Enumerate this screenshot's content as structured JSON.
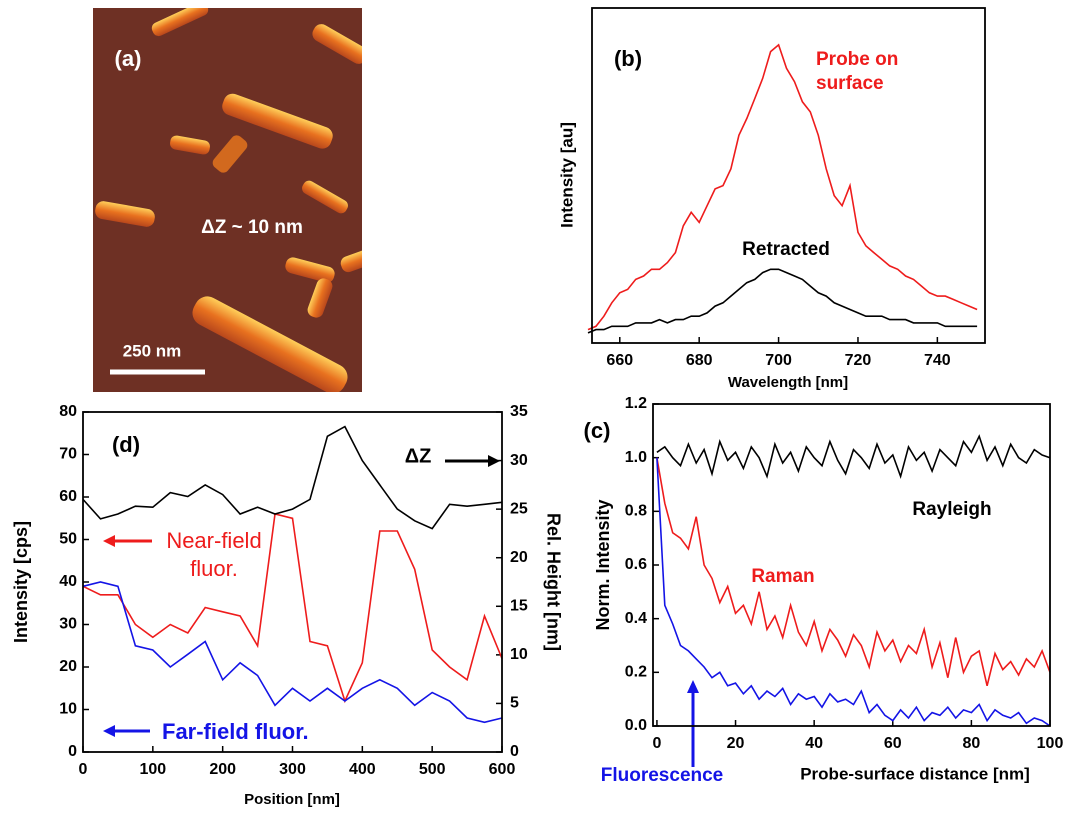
{
  "chart_data": [
    {
      "type": "image",
      "title": "(a)",
      "annotation": "ΔZ ~ 10 nm",
      "scale_bar_label": "250 nm"
    },
    {
      "type": "line",
      "title": "(b)",
      "y_label": "Intensity [au]",
      "x_label": "Wavelength [nm]",
      "x": [
        652,
        654,
        656,
        658,
        660,
        662,
        664,
        666,
        668,
        670,
        672,
        674,
        676,
        678,
        680,
        682,
        684,
        686,
        688,
        690,
        692,
        694,
        696,
        698,
        700,
        702,
        704,
        706,
        708,
        710,
        712,
        714,
        716,
        718,
        720,
        722,
        724,
        726,
        728,
        730,
        732,
        734,
        736,
        738,
        740,
        742,
        744,
        746,
        748,
        750
      ],
      "xlim": [
        653,
        752
      ],
      "xticks": [
        660,
        680,
        700,
        720,
        740
      ],
      "ylim": [
        0,
        100
      ],
      "series": [
        {
          "name": "Probe on surface",
          "color": "#ee1c1c",
          "values": [
            4,
            5,
            8,
            12,
            15,
            16,
            19,
            20,
            22,
            22,
            24,
            27,
            35,
            39,
            36,
            41,
            46,
            47,
            52,
            62,
            67,
            73,
            79,
            87,
            89,
            82,
            78,
            72,
            69,
            62,
            52,
            44,
            41,
            47,
            33,
            29,
            27,
            25,
            23,
            22,
            20,
            19,
            17,
            15,
            14,
            14,
            13,
            12,
            11,
            10
          ]
        },
        {
          "name": "Retracted",
          "color": "#000000",
          "values": [
            3,
            4,
            4,
            5,
            5,
            5,
            6,
            6,
            6,
            7,
            6,
            7,
            7,
            8,
            8,
            9,
            11,
            12,
            14,
            16,
            18,
            19,
            21,
            22,
            22,
            21,
            20,
            19,
            17,
            15,
            14,
            12,
            11,
            10,
            9,
            8,
            8,
            8,
            7,
            7,
            7,
            6,
            6,
            6,
            6,
            5,
            5,
            5,
            5,
            5
          ]
        }
      ]
    },
    {
      "type": "line",
      "title": "(c)",
      "y_label": "Norm. Intensity",
      "x_label": "Probe-surface distance [nm]",
      "x": [
        0,
        2,
        4,
        6,
        8,
        10,
        12,
        14,
        16,
        18,
        20,
        22,
        24,
        26,
        28,
        30,
        32,
        34,
        36,
        38,
        40,
        42,
        44,
        46,
        48,
        50,
        52,
        54,
        56,
        58,
        60,
        62,
        64,
        66,
        68,
        70,
        72,
        74,
        76,
        78,
        80,
        82,
        84,
        86,
        88,
        90,
        92,
        94,
        96,
        98,
        100
      ],
      "xlim": [
        -1,
        100
      ],
      "xticks": [
        0,
        20,
        40,
        60,
        80,
        100
      ],
      "ylim": [
        0,
        1.2
      ],
      "yticks": [
        {
          "value": 0,
          "label": "0.0"
        },
        0.2,
        0.4,
        0.6,
        0.8,
        {
          "value": 1,
          "label": "1.0"
        },
        1.2
      ],
      "series": [
        {
          "name": "Rayleigh",
          "color": "#000000",
          "values": [
            1.02,
            1.04,
            1.0,
            0.97,
            1.05,
            0.98,
            1.03,
            0.94,
            1.06,
            0.99,
            1.02,
            0.96,
            1.04,
            1.0,
            0.93,
            1.05,
            0.98,
            1.02,
            0.95,
            1.04,
            1.0,
            0.97,
            1.06,
            0.99,
            0.94,
            1.03,
            1.0,
            0.96,
            1.05,
            0.98,
            1.01,
            0.93,
            1.04,
            0.99,
            1.02,
            0.95,
            1.03,
            1.0,
            0.97,
            1.06,
            1.02,
            1.08,
            0.99,
            1.04,
            0.97,
            1.05,
            1.0,
            0.98,
            1.03,
            1.01,
            1.0
          ]
        },
        {
          "name": "Raman",
          "color": "#ee1c1c",
          "values": [
            1.0,
            0.83,
            0.72,
            0.7,
            0.66,
            0.78,
            0.6,
            0.55,
            0.46,
            0.52,
            0.42,
            0.45,
            0.38,
            0.5,
            0.36,
            0.41,
            0.33,
            0.45,
            0.35,
            0.3,
            0.39,
            0.28,
            0.36,
            0.32,
            0.26,
            0.34,
            0.3,
            0.22,
            0.35,
            0.28,
            0.32,
            0.24,
            0.3,
            0.27,
            0.36,
            0.22,
            0.31,
            0.18,
            0.33,
            0.2,
            0.26,
            0.28,
            0.15,
            0.27,
            0.21,
            0.24,
            0.19,
            0.25,
            0.22,
            0.28,
            0.2
          ]
        },
        {
          "name": "Fluorescence",
          "color": "#1414e6",
          "values": [
            1.0,
            0.45,
            0.38,
            0.3,
            0.28,
            0.25,
            0.22,
            0.18,
            0.2,
            0.15,
            0.16,
            0.12,
            0.15,
            0.1,
            0.13,
            0.11,
            0.14,
            0.08,
            0.12,
            0.1,
            0.11,
            0.07,
            0.12,
            0.09,
            0.1,
            0.08,
            0.13,
            0.05,
            0.08,
            0.04,
            0.02,
            0.06,
            0.03,
            0.07,
            0.02,
            0.05,
            0.04,
            0.07,
            0.03,
            0.06,
            0.05,
            0.08,
            0.02,
            0.06,
            0.04,
            0.03,
            0.05,
            0.01,
            0.03,
            0.02,
            0.0
          ]
        }
      ]
    },
    {
      "type": "line",
      "title": "(d)",
      "y_label": "Intensity [cps]",
      "y2_label": "Rel. Height [nm]",
      "x_label": "Position [nm]",
      "x": [
        0,
        25,
        50,
        75,
        100,
        125,
        150,
        175,
        200,
        225,
        250,
        275,
        300,
        325,
        350,
        375,
        400,
        425,
        450,
        475,
        500,
        525,
        550,
        575,
        600
      ],
      "xlim": [
        0,
        600
      ],
      "xticks": [
        0,
        100,
        200,
        300,
        400,
        500,
        600
      ],
      "ylim": [
        0,
        80
      ],
      "yticks": [
        0,
        10,
        20,
        30,
        40,
        50,
        60,
        70,
        80
      ],
      "y2lim": [
        0,
        35
      ],
      "y2ticks": [
        0,
        5,
        10,
        15,
        20,
        25,
        30,
        35
      ],
      "series": [
        {
          "name": "Near-field fluor.",
          "color": "#ee1c1c",
          "values": [
            39,
            37,
            37,
            30,
            27,
            30,
            28,
            34,
            33,
            32,
            25,
            56,
            55,
            26,
            25,
            12,
            21,
            52,
            52,
            43,
            24,
            20,
            17,
            32,
            22
          ]
        },
        {
          "name": "Far-field fluor.",
          "color": "#1414e6",
          "values": [
            39,
            40,
            39,
            25,
            24,
            20,
            23,
            26,
            17,
            21,
            18,
            11,
            15,
            12,
            15,
            12,
            15,
            17,
            15,
            11,
            14,
            12,
            8,
            7,
            8
          ]
        },
        {
          "name": "ΔZ",
          "color": "#000000",
          "axis": "y2",
          "values": [
            26,
            24,
            24.5,
            25.3,
            25.2,
            26.7,
            26.3,
            27.5,
            26.5,
            24.5,
            25.2,
            24.5,
            25,
            26,
            32.5,
            33.5,
            30,
            27.5,
            25,
            23.8,
            23,
            25.5,
            25.3,
            25.5,
            25.7
          ]
        }
      ]
    }
  ]
}
